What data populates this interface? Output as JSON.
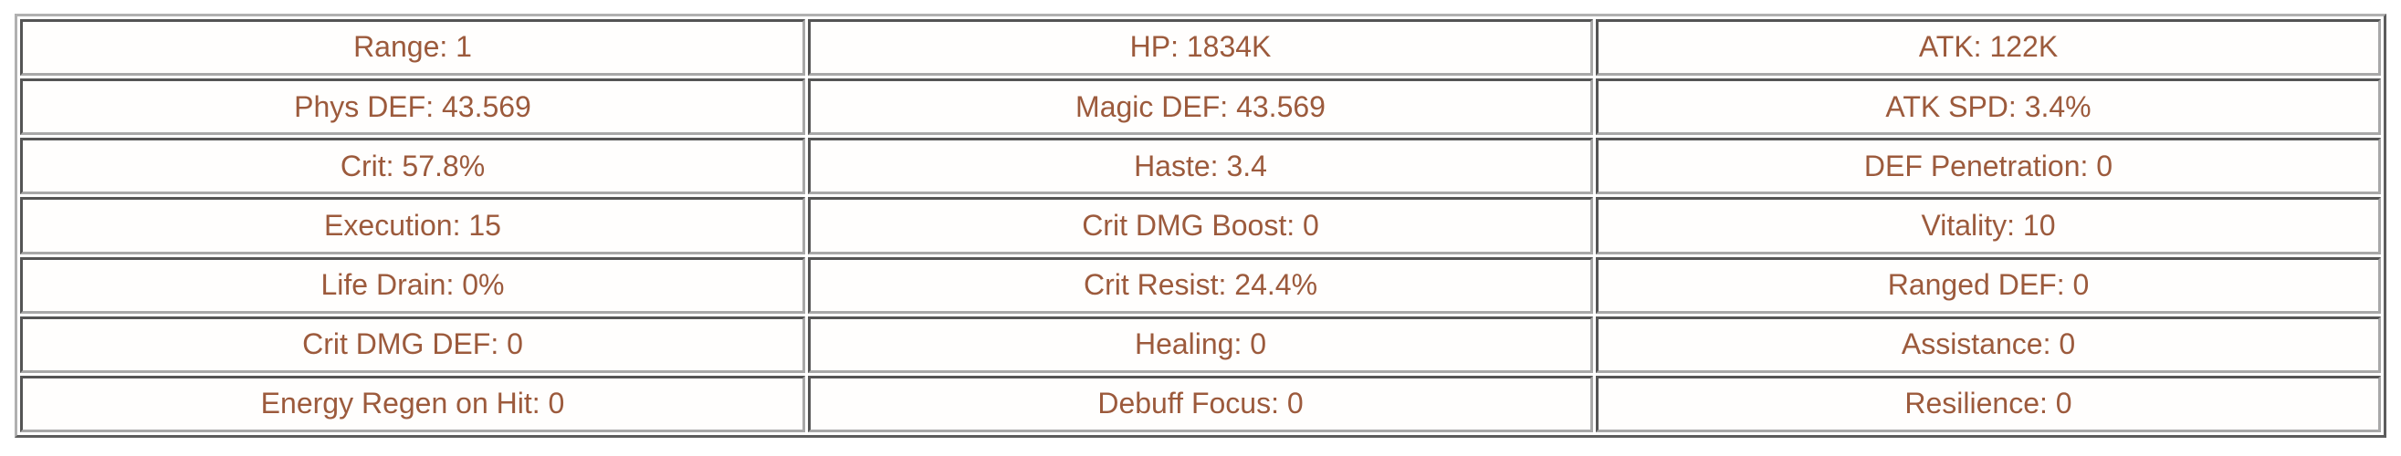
{
  "meta": {
    "text_color": "#9c5a3c",
    "border_color": "#a8a8a8",
    "background_color": "#ffffff"
  },
  "stats": {
    "rows": [
      [
        "Range: 1",
        "HP: 1834K",
        "ATK: 122K"
      ],
      [
        "Phys DEF: 43.569",
        "Magic DEF: 43.569",
        "ATK SPD: 3.4%"
      ],
      [
        "Crit: 57.8%",
        "Haste: 3.4",
        "DEF Penetration: 0"
      ],
      [
        "Execution: 15",
        "Crit DMG Boost: 0",
        "Vitality: 10"
      ],
      [
        "Life Drain: 0%",
        "Crit Resist: 24.4%",
        "Ranged DEF: 0"
      ],
      [
        "Crit DMG DEF: 0",
        "Healing: 0",
        "Assistance: 0"
      ],
      [
        "Energy Regen on Hit: 0",
        "Debuff Focus: 0",
        "Resilience: 0"
      ]
    ]
  }
}
